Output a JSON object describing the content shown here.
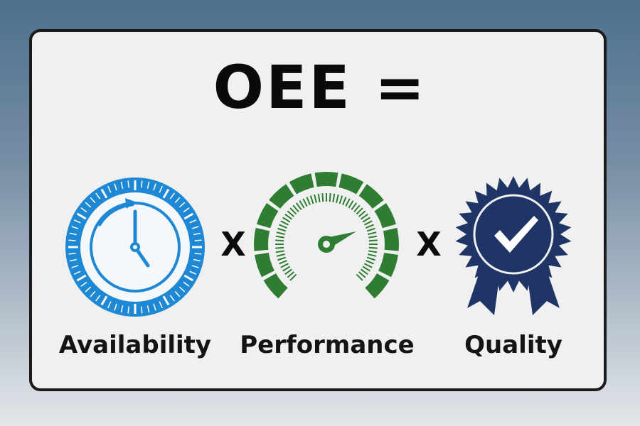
{
  "formula": {
    "title": "OEE =",
    "operator": "X"
  },
  "factors": [
    {
      "label": "Availability",
      "icon": "stopwatch-icon",
      "color": "#1e88d4"
    },
    {
      "label": "Performance",
      "icon": "speedometer-icon",
      "color": "#2e7d32"
    },
    {
      "label": "Quality",
      "icon": "award-badge-checkmark-icon",
      "color": "#1f3566"
    }
  ]
}
